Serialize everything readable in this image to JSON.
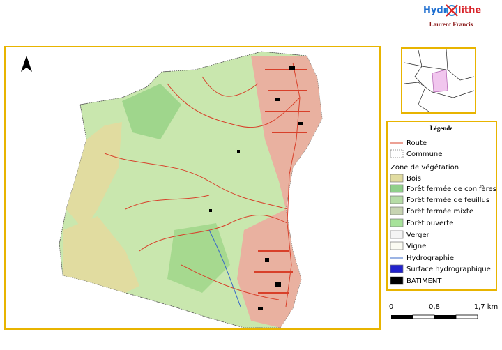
{
  "header": {
    "logo_left": "Hydr",
    "logo_right": "lithe",
    "author": "Laurent Francis"
  },
  "legend": {
    "title": "Légende",
    "items": [
      "Route",
      "Commune",
      "Zone de végétation",
      "Bois",
      "Forêt fermée de conifères",
      "Forêt fermée de feuillus",
      "Forêt fermée mixte",
      "Forêt ouverte",
      "Verger",
      "Vigne",
      "Hydrographie",
      "Surface hydrographique",
      "BATIMENT"
    ]
  },
  "scale": {
    "labels": [
      "0",
      "0,8",
      "1,7 km"
    ]
  }
}
